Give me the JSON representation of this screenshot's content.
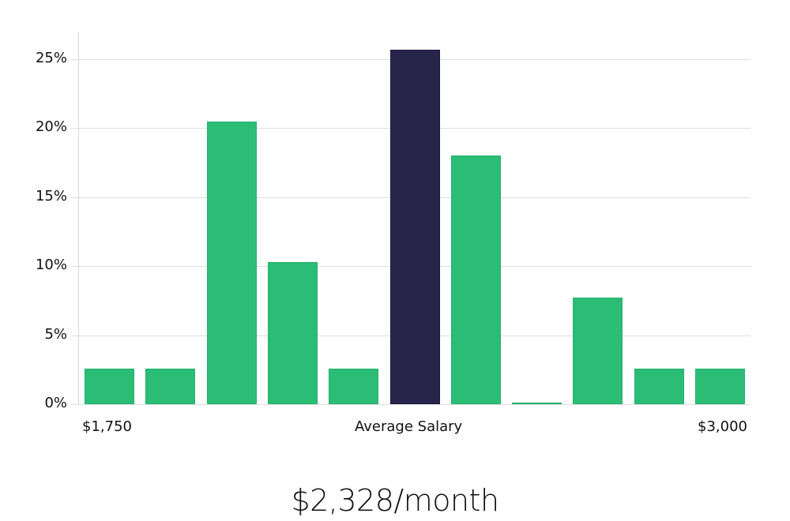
{
  "chart_data": {
    "type": "bar",
    "title": "$2,328/month",
    "xlabel": "Average Salary",
    "ylabel": "",
    "x_range_labels": {
      "min": "$1,750",
      "max": "$3,000"
    },
    "categories": [
      "bin1",
      "bin2",
      "bin3",
      "bin4",
      "bin5",
      "bin6",
      "bin7",
      "bin8",
      "bin9",
      "bin10",
      "bin11"
    ],
    "values": [
      2.6,
      2.6,
      20.5,
      10.3,
      2.6,
      25.7,
      18.0,
      0.1,
      7.7,
      2.6,
      2.6
    ],
    "highlight_index": 5,
    "ylim": [
      0,
      27
    ],
    "yticks": [
      "0%",
      "5%",
      "10%",
      "15%",
      "20%",
      "25%"
    ],
    "grid": true,
    "colors": {
      "bar": "#2bbd76",
      "highlight": "#28254a",
      "grid": "#dedede"
    }
  },
  "labels": {
    "xmin": "$1,750",
    "xcenter": "Average Salary",
    "xmax": "$3,000",
    "title": "$2,328/month"
  }
}
